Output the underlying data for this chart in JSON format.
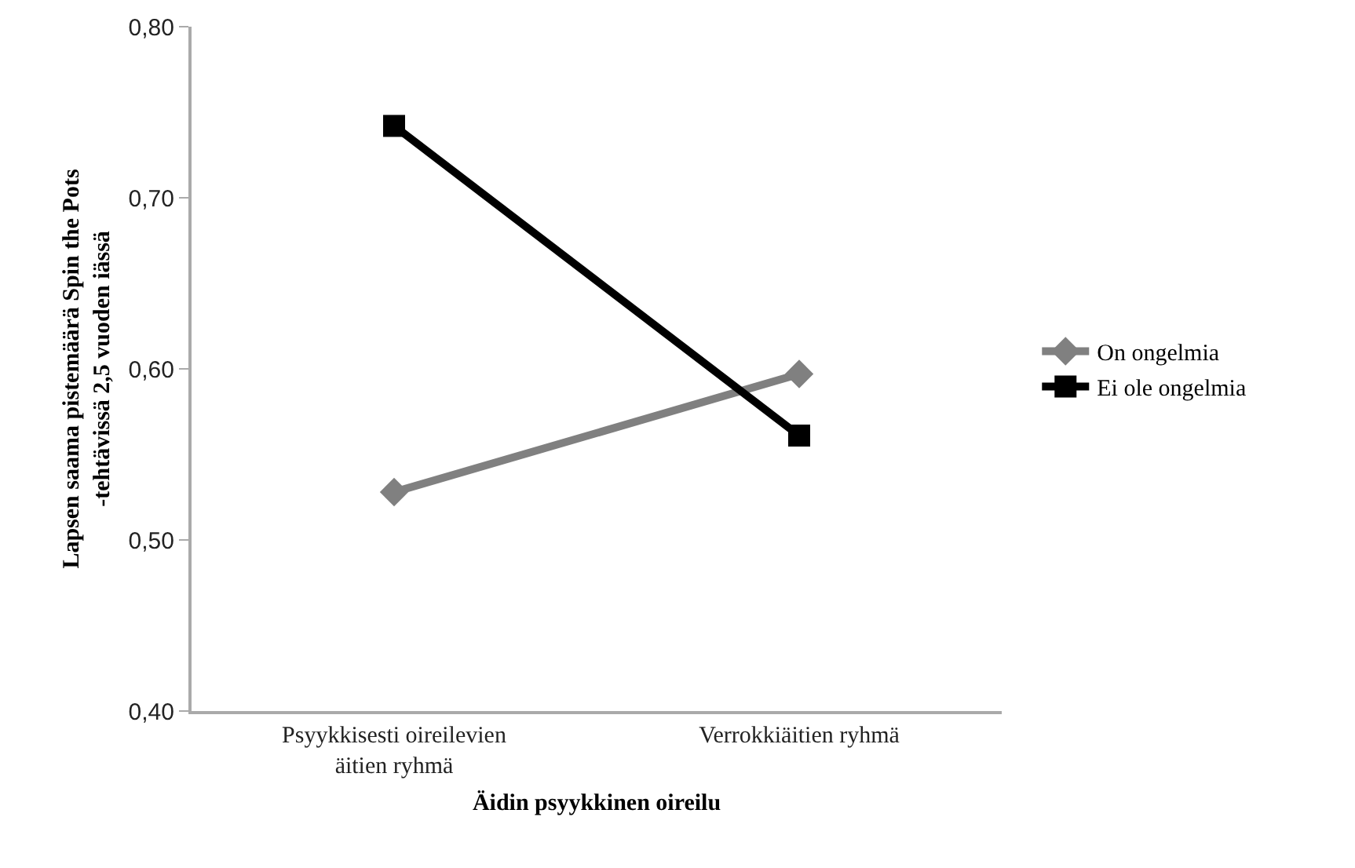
{
  "chart_data": {
    "type": "line",
    "xlabel": "Äidin psyykkinen oireilu",
    "ylabel": "Lapsen saama pistemäärä Spin the Pots -tehtävissä 2,5 vuoden iässä",
    "categories": [
      "Psyykkisesti oireilevien äitien ryhmä",
      "Verrokkiäitien ryhmä"
    ],
    "series": [
      {
        "name": "On ongelmia",
        "color": "#808080",
        "marker": "diamond",
        "values": [
          0.528,
          0.597
        ]
      },
      {
        "name": "Ei ole ongelmia",
        "color": "#000000",
        "marker": "square",
        "values": [
          0.742,
          0.561
        ]
      }
    ],
    "ylim": [
      0.4,
      0.8
    ],
    "yticks": [
      {
        "value": 0.4,
        "label": "0,40"
      },
      {
        "value": 0.5,
        "label": "0,50"
      },
      {
        "value": 0.6,
        "label": "0,60"
      },
      {
        "value": 0.7,
        "label": "0,70"
      },
      {
        "value": 0.8,
        "label": "0,80"
      }
    ],
    "grid": false,
    "legend": "right",
    "line_style": "solid"
  }
}
